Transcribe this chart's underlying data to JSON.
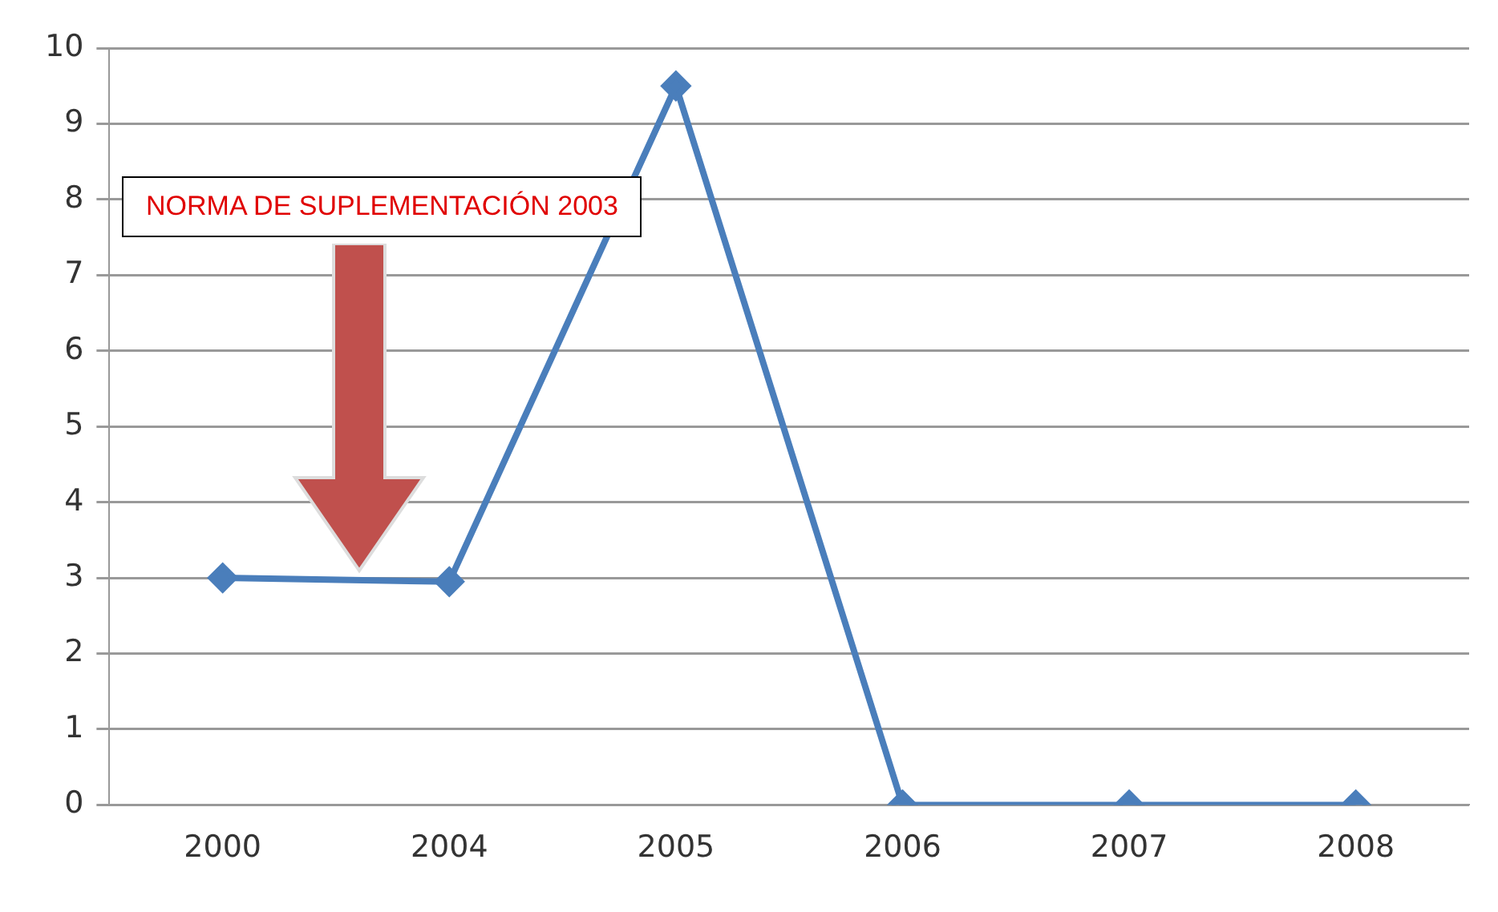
{
  "chart_data": {
    "type": "line",
    "categories": [
      "2000",
      "2004",
      "2005",
      "2006",
      "2007",
      "2008"
    ],
    "series": [
      {
        "color": "#4a7ebb",
        "values": [
          3,
          2.95,
          9.5,
          0,
          0,
          0
        ]
      }
    ],
    "ylim": [
      0,
      10
    ],
    "yticks": [
      0,
      1,
      2,
      3,
      4,
      5,
      6,
      7,
      8,
      9,
      10
    ],
    "grid": "y",
    "legend": false,
    "marker": "diamond",
    "line_style": "solid",
    "annotations": [
      "NORMA DE SUPLEMENTACIÓN 2003"
    ]
  }
}
